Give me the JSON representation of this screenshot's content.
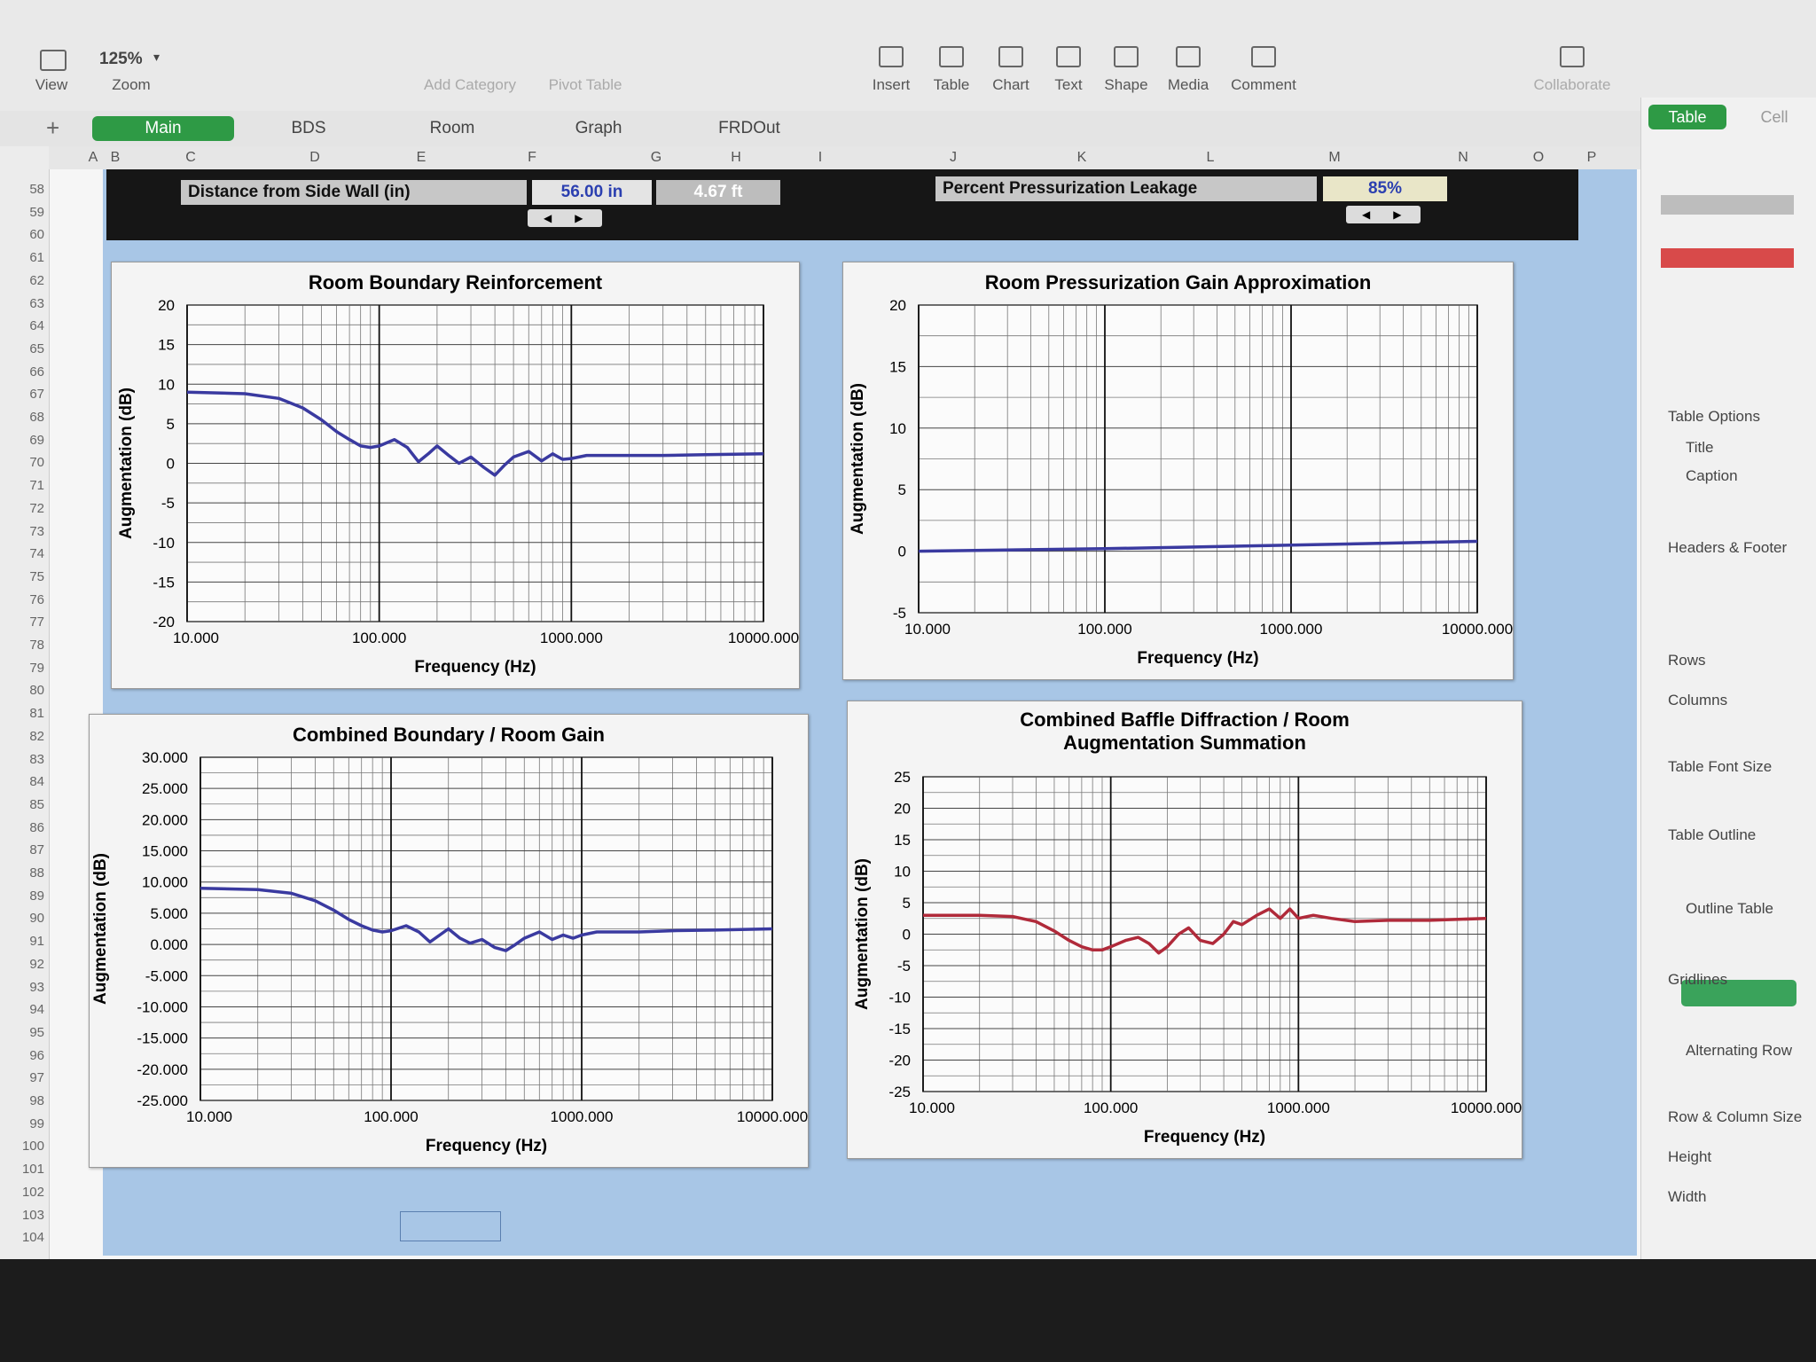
{
  "toolbar": {
    "zoom_value": "125%",
    "items": [
      "View",
      "Zoom",
      "Add Category",
      "Pivot Table",
      "Insert",
      "Table",
      "Chart",
      "Text",
      "Shape",
      "Media",
      "Comment",
      "Collaborate"
    ]
  },
  "tabs": [
    "Main",
    "BDS",
    "Room",
    "Graph",
    "FRDOut"
  ],
  "sheet": {
    "columns": [
      "A",
      "B",
      "C",
      "D",
      "E",
      "F",
      "G",
      "H",
      "I",
      "J",
      "K",
      "L",
      "M",
      "N",
      "O",
      "P"
    ],
    "row_numbers": [
      58,
      59,
      60,
      61,
      62,
      63,
      64,
      65,
      66,
      67,
      68,
      69,
      70,
      71,
      72,
      73,
      74,
      75,
      76,
      77,
      78,
      79,
      80,
      81,
      82,
      83,
      84,
      85,
      86,
      87,
      88,
      89,
      90,
      91,
      92,
      93,
      94,
      95,
      96,
      97,
      98,
      99,
      100,
      101,
      102,
      103,
      104
    ],
    "cells": {
      "side_wall_label": "Distance from Side Wall (in)",
      "side_wall_in": "56.00 in",
      "side_wall_ft": "4.67 ft",
      "leakage_label": "Percent Pressurization Leakage",
      "leakage_value": "85%"
    }
  },
  "sidebar": {
    "tabs": [
      "Table",
      "Cell"
    ],
    "labels": [
      "Table Options",
      "Title",
      "Caption",
      "Headers & Footer",
      "Rows",
      "Columns",
      "Table Font Size",
      "Table Outline",
      "Outline Table",
      "Gridlines",
      "Alternating Row",
      "Row & Column Size",
      "Height",
      "Width"
    ]
  },
  "chart_data": [
    {
      "type": "line",
      "title": "Room Boundary Reinforcement",
      "x_label": "Frequency (Hz)",
      "y_label": "Augmentation (dB)",
      "log_x": true,
      "grid": true,
      "minor_grid": true,
      "color": "#3a3aa0",
      "x": [
        10,
        20,
        30,
        40,
        50,
        60,
        70,
        80,
        90,
        100,
        120,
        140,
        160,
        180,
        200,
        230,
        260,
        300,
        350,
        400,
        450,
        500,
        600,
        700,
        800,
        900,
        1000,
        1200,
        1500,
        2000,
        3000,
        5000,
        10000
      ],
      "values": [
        9,
        8.8,
        8.2,
        7,
        5.5,
        4,
        3,
        2.2,
        2,
        2.2,
        3,
        2,
        0.2,
        1.2,
        2.2,
        1,
        0,
        0.8,
        -0.5,
        -1.5,
        -0.2,
        0.8,
        1.5,
        0.3,
        1.2,
        0.5,
        0.6,
        1,
        1,
        1,
        1,
        1.1,
        1.2
      ],
      "xlim": [
        10,
        10000
      ],
      "xticks": [
        {
          "value": 10,
          "label": "10.000"
        },
        {
          "value": 100,
          "label": "100.000"
        },
        {
          "value": 1000,
          "label": "1000.000"
        },
        {
          "value": 10000,
          "label": "10000.000"
        }
      ],
      "ylim": [
        -20,
        20
      ],
      "yticks": [
        -20,
        -15,
        -10,
        -5,
        0,
        5,
        10,
        15,
        20
      ]
    },
    {
      "type": "line",
      "title": "Room Pressurization Gain Approximation",
      "x_label": "Frequency (Hz)",
      "y_label": "Augmentation (dB)",
      "log_x": true,
      "grid": true,
      "minor_grid": true,
      "color": "#3a3aa0",
      "x": [
        10,
        100,
        1000,
        10000
      ],
      "values": [
        0,
        0.2,
        0.5,
        0.8
      ],
      "xlim": [
        10,
        10000
      ],
      "xticks": [
        {
          "value": 10,
          "label": "10.000"
        },
        {
          "value": 100,
          "label": "100.000"
        },
        {
          "value": 1000,
          "label": "1000.000"
        },
        {
          "value": 10000,
          "label": "10000.000"
        }
      ],
      "ylim": [
        -5,
        20
      ],
      "yticks": [
        -5,
        0,
        5,
        10,
        15,
        20
      ]
    },
    {
      "type": "line",
      "title": "Combined Boundary / Room Gain",
      "x_label": "Frequency (Hz)",
      "y_label": "Augmentation (dB)",
      "log_x": true,
      "grid": true,
      "minor_grid": true,
      "color": "#3a3aa0",
      "x": [
        10,
        20,
        30,
        40,
        50,
        60,
        70,
        80,
        90,
        100,
        120,
        140,
        160,
        180,
        200,
        230,
        260,
        300,
        350,
        400,
        450,
        500,
        600,
        700,
        800,
        900,
        1000,
        1200,
        1500,
        2000,
        3000,
        5000,
        10000
      ],
      "values": [
        9,
        8.8,
        8.2,
        7,
        5.5,
        4,
        3,
        2.3,
        2,
        2.2,
        3,
        2,
        0.4,
        1.5,
        2.5,
        1,
        0.2,
        0.8,
        -0.5,
        -1,
        0,
        1,
        2,
        0.8,
        1.5,
        1,
        1.5,
        2,
        2,
        2,
        2.2,
        2.3,
        2.5
      ],
      "xlim": [
        10,
        10000
      ],
      "xticks": [
        {
          "value": 10,
          "label": "10.000"
        },
        {
          "value": 100,
          "label": "100.000"
        },
        {
          "value": 1000,
          "label": "1000.000"
        },
        {
          "value": 10000,
          "label": "10000.000"
        }
      ],
      "ylim": [
        -25,
        30
      ],
      "yticks": [
        {
          "value": -25,
          "label": "-25.000"
        },
        {
          "value": -20,
          "label": "-20.000"
        },
        {
          "value": -15,
          "label": "-15.000"
        },
        {
          "value": -10,
          "label": "-10.000"
        },
        {
          "value": -5,
          "label": "-5.000"
        },
        {
          "value": 0,
          "label": "0.000"
        },
        {
          "value": 5,
          "label": "5.000"
        },
        {
          "value": 10,
          "label": "10.000"
        },
        {
          "value": 15,
          "label": "15.000"
        },
        {
          "value": 20,
          "label": "20.000"
        },
        {
          "value": 25,
          "label": "25.000"
        },
        {
          "value": 30,
          "label": "30.000"
        }
      ]
    },
    {
      "type": "line",
      "title": "Combined Baffle Diffraction / Room Augmentation Summation",
      "x_label": "Frequency (Hz)",
      "y_label": "Augmentation (dB)",
      "log_x": true,
      "grid": true,
      "minor_grid": true,
      "color": "#b02a3a",
      "x": [
        10,
        20,
        30,
        40,
        50,
        60,
        70,
        80,
        90,
        100,
        120,
        140,
        160,
        180,
        200,
        230,
        260,
        300,
        350,
        400,
        450,
        500,
        600,
        700,
        800,
        900,
        1000,
        1200,
        1500,
        2000,
        3000,
        5000,
        10000
      ],
      "values": [
        3,
        3,
        2.8,
        2,
        0.5,
        -1,
        -2,
        -2.5,
        -2.5,
        -2,
        -1,
        -0.5,
        -1.5,
        -3,
        -2,
        0,
        1,
        -1,
        -1.5,
        0,
        2,
        1.5,
        3,
        4,
        2.5,
        4,
        2.5,
        3,
        2.5,
        2,
        2.2,
        2.2,
        2.5
      ],
      "xlim": [
        10,
        10000
      ],
      "xticks": [
        {
          "value": 10,
          "label": "10.000"
        },
        {
          "value": 100,
          "label": "100.000"
        },
        {
          "value": 1000,
          "label": "1000.000"
        },
        {
          "value": 10000,
          "label": "10000.000"
        }
      ],
      "ylim": [
        -25,
        25
      ],
      "yticks": [
        -25,
        -20,
        -15,
        -10,
        -5,
        0,
        5,
        10,
        15,
        20,
        25
      ]
    }
  ]
}
